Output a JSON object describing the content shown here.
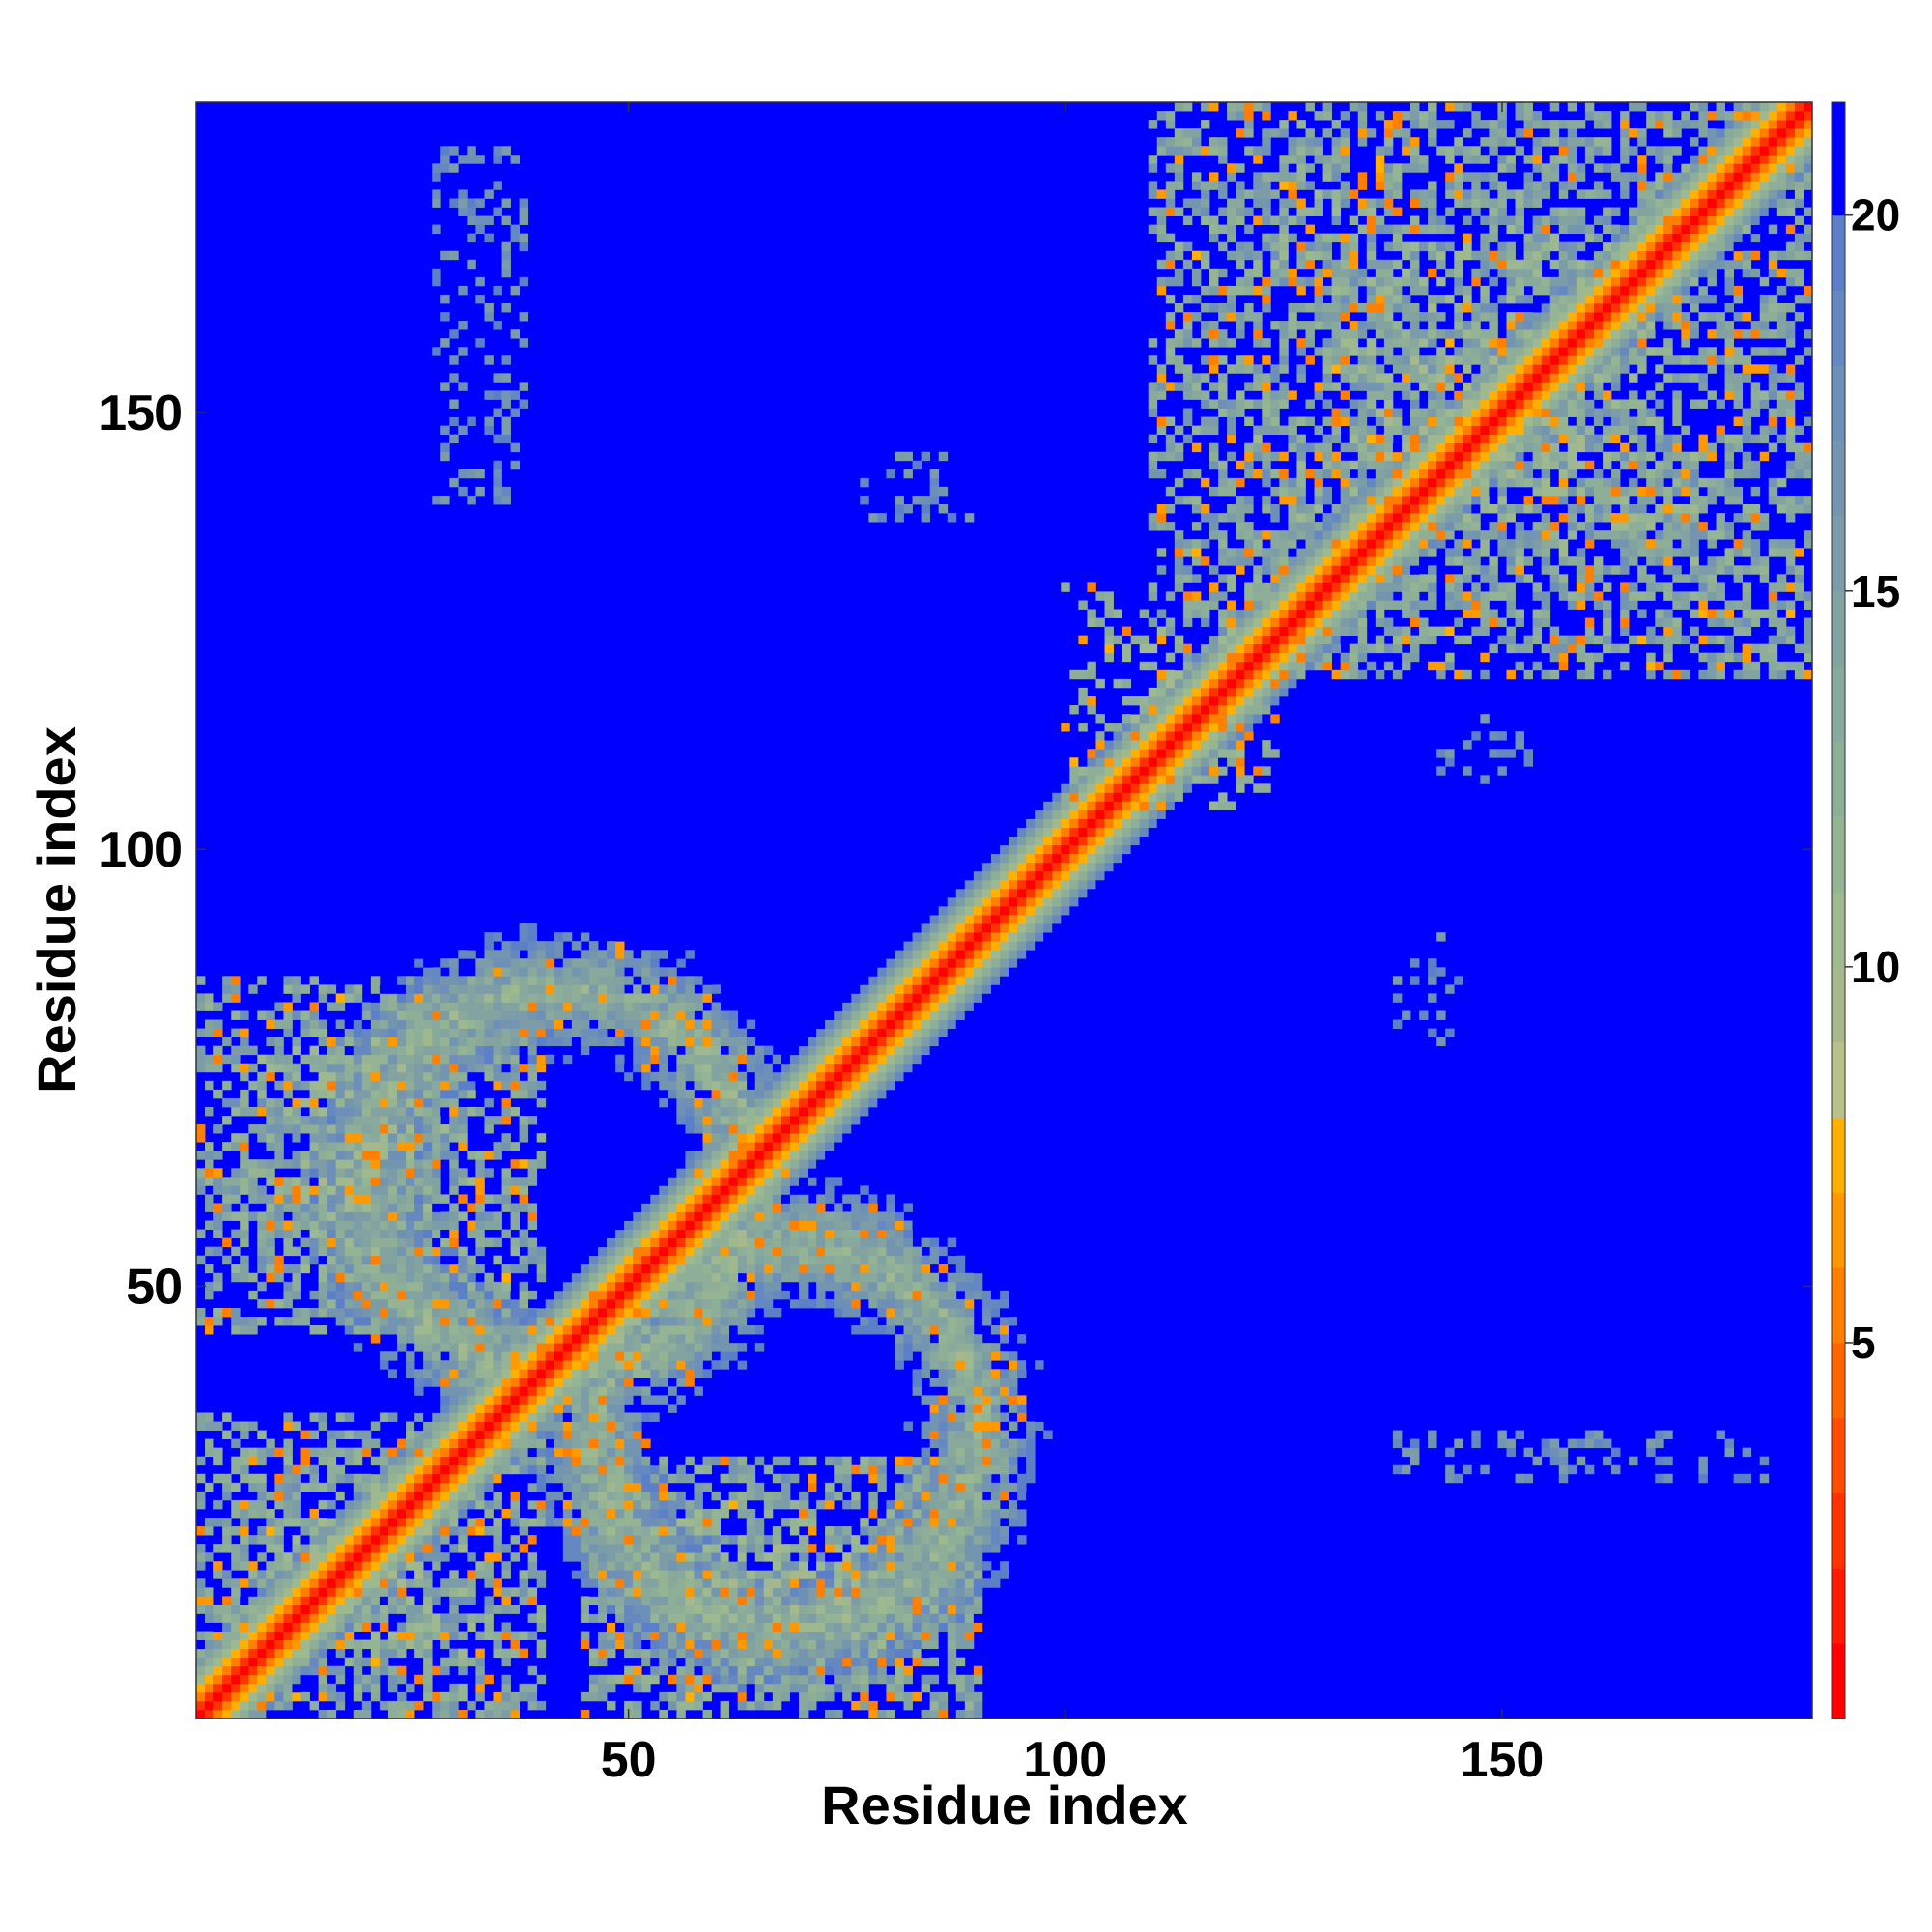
{
  "chart_data": {
    "type": "heatmap",
    "title": "",
    "xlabel": "Residue index",
    "ylabel": "Residue index",
    "xlim": [
      1,
      185
    ],
    "ylim": [
      1,
      185
    ],
    "x_ticks": [
      50,
      100,
      150
    ],
    "y_ticks": [
      50,
      100,
      150
    ],
    "x_tick_labels": [
      "50",
      "100",
      "150"
    ],
    "y_tick_labels": [
      "50",
      "100",
      "150"
    ],
    "colorbar": {
      "range": [
        0,
        21.5
      ],
      "ticks": [
        5,
        10,
        15,
        20
      ],
      "tick_labels": [
        "5",
        "10",
        "15",
        "20"
      ],
      "levels": [
        {
          "max": 1,
          "color": "#ff0000"
        },
        {
          "max": 2,
          "color": "#ff1a00"
        },
        {
          "max": 3,
          "color": "#ff3300"
        },
        {
          "max": 4,
          "color": "#ff4d00"
        },
        {
          "max": 5,
          "color": "#ff6600"
        },
        {
          "max": 6,
          "color": "#ff7f00"
        },
        {
          "max": 7,
          "color": "#ff9900"
        },
        {
          "max": 8,
          "color": "#ffb000"
        },
        {
          "max": 9,
          "color": "#b9c08a"
        },
        {
          "max": 10,
          "color": "#a7b98c"
        },
        {
          "max": 11,
          "color": "#9eb98f"
        },
        {
          "max": 12,
          "color": "#94b494"
        },
        {
          "max": 13,
          "color": "#8fae98"
        },
        {
          "max": 14,
          "color": "#88a99c"
        },
        {
          "max": 15,
          "color": "#83a3a1"
        },
        {
          "max": 16,
          "color": "#7c9ca8"
        },
        {
          "max": 17,
          "color": "#7495b0"
        },
        {
          "max": 18,
          "color": "#6d8fb8"
        },
        {
          "max": 19,
          "color": "#6688c0"
        },
        {
          "max": 20,
          "color": "#5c80c8"
        },
        {
          "max": 21.5,
          "color": "#0000ff"
        }
      ]
    },
    "contact_regions": [
      {
        "type": "diagonal_band",
        "width": 6,
        "note": "near-diagonal residues, distance increases away from diagonal"
      },
      {
        "type": "blob",
        "x": [
          1,
          40
        ],
        "y": [
          1,
          35
        ]
      },
      {
        "type": "ring",
        "center": [
          42,
          62
        ],
        "radius": 22
      },
      {
        "type": "ring",
        "center": [
          68,
          33
        ],
        "radius": 22
      },
      {
        "type": "blob",
        "x": [
          1,
          40
        ],
        "y": [
          45,
          85
        ]
      },
      {
        "type": "blob",
        "x": [
          45,
          90
        ],
        "y": [
          1,
          30
        ]
      },
      {
        "type": "blob",
        "x": [
          110,
          185
        ],
        "y": [
          120,
          185
        ]
      },
      {
        "type": "patch",
        "x": [
          100,
          125
        ],
        "y": [
          105,
          130
        ]
      },
      {
        "type": "sparse",
        "x": [
          28,
          38
        ],
        "y": [
          140,
          180
        ]
      },
      {
        "type": "sparse",
        "x": [
          77,
          90
        ],
        "y": [
          138,
          145
        ]
      },
      {
        "type": "sparse",
        "x": [
          138,
          180
        ],
        "y": [
          28,
          33
        ]
      },
      {
        "type": "sparse",
        "x": [
          138,
          145
        ],
        "y": [
          78,
          90
        ]
      },
      {
        "type": "sparse",
        "x": [
          143,
          153
        ],
        "y": [
          108,
          115
        ]
      }
    ]
  }
}
